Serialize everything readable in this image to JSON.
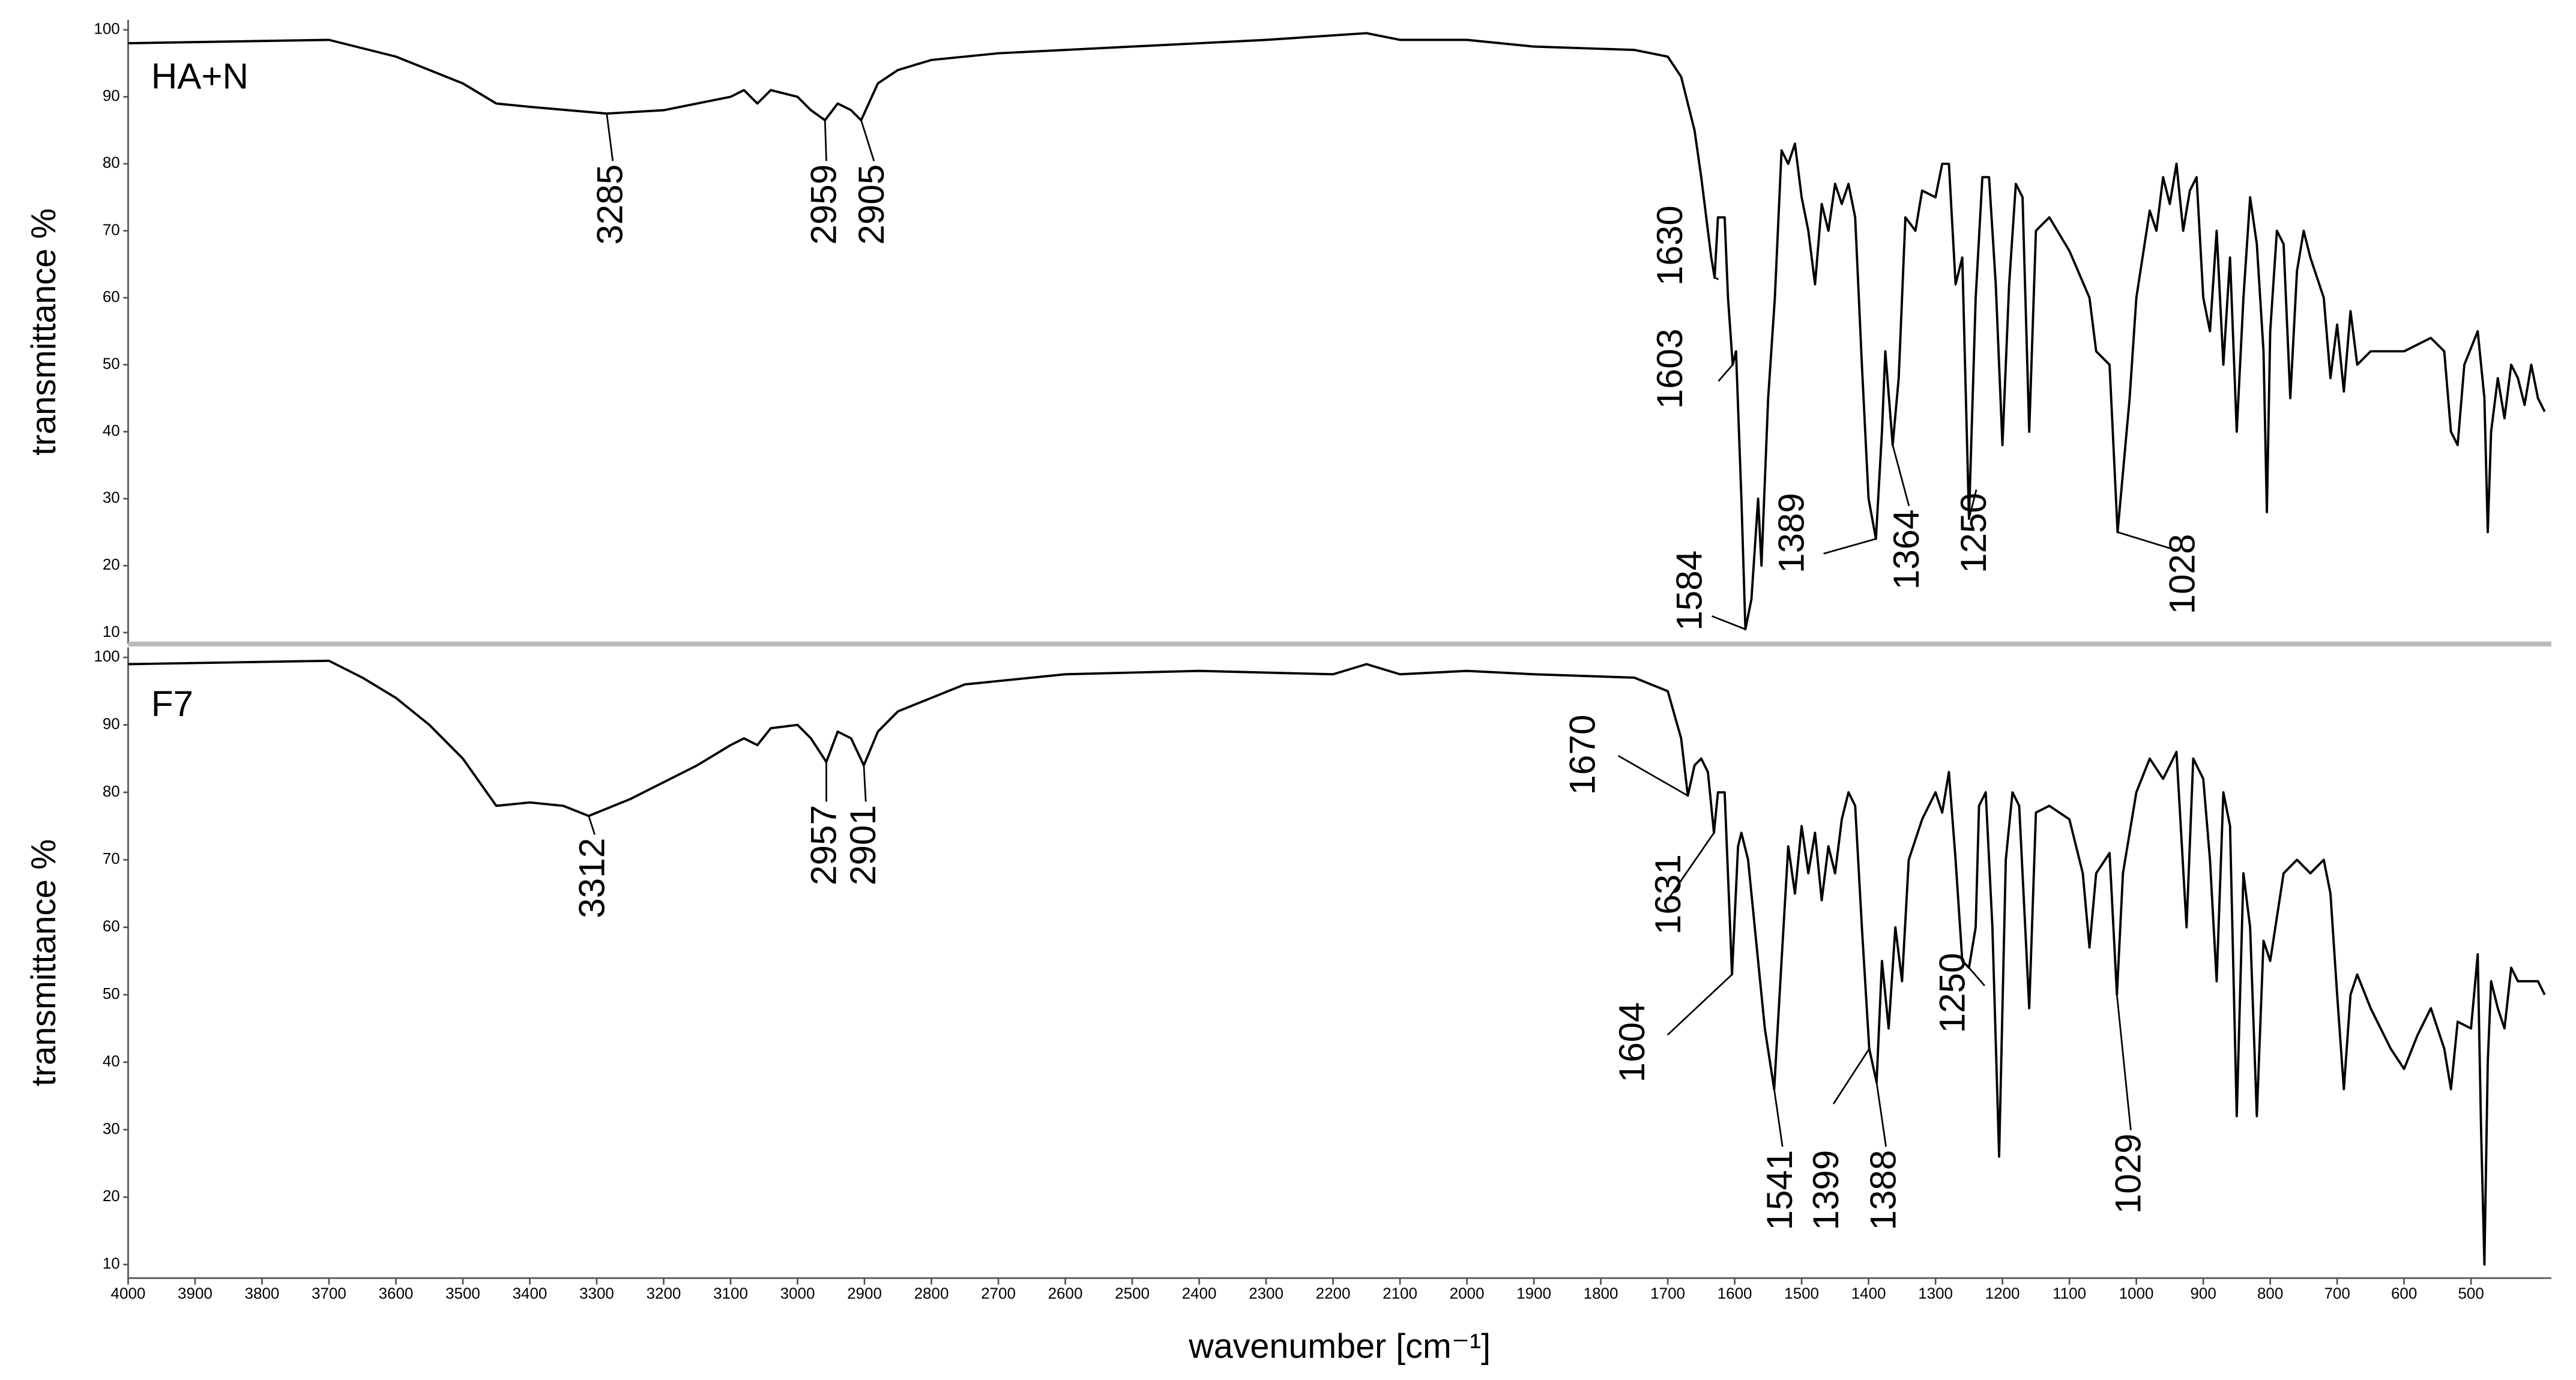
{
  "chart_data": [
    {
      "type": "line",
      "label": "HA+N",
      "ylabel": "transmittance %",
      "color": "#000000",
      "xlim": [
        4000,
        380
      ],
      "ylim": [
        8.3,
        101.5
      ],
      "yticks": [
        10,
        20,
        30,
        40,
        50,
        60,
        70,
        80,
        90,
        100
      ],
      "x": [
        4000,
        3700,
        3600,
        3500,
        3450,
        3400,
        3285,
        3200,
        3100,
        3080,
        3060,
        3040,
        3000,
        2980,
        2959,
        2940,
        2920,
        2905,
        2880,
        2850,
        2800,
        2700,
        2500,
        2300,
        2150,
        2100,
        2000,
        1900,
        1750,
        1700,
        1680,
        1660,
        1650,
        1640,
        1635,
        1630,
        1625,
        1615,
        1610,
        1603,
        1598,
        1590,
        1584,
        1575,
        1565,
        1560,
        1550,
        1540,
        1530,
        1520,
        1510,
        1500,
        1490,
        1480,
        1470,
        1460,
        1450,
        1440,
        1430,
        1420,
        1410,
        1400,
        1389,
        1380,
        1375,
        1364,
        1355,
        1345,
        1330,
        1320,
        1300,
        1290,
        1280,
        1270,
        1260,
        1250,
        1240,
        1230,
        1220,
        1210,
        1200,
        1190,
        1180,
        1170,
        1160,
        1150,
        1130,
        1100,
        1070,
        1060,
        1040,
        1028,
        1010,
        1000,
        980,
        970,
        960,
        950,
        940,
        930,
        920,
        910,
        900,
        890,
        880,
        870,
        860,
        850,
        840,
        830,
        820,
        810,
        805,
        800,
        790,
        780,
        770,
        760,
        750,
        740,
        720,
        710,
        700,
        690,
        680,
        670,
        650,
        600,
        560,
        540,
        530,
        520,
        510,
        490,
        480,
        475,
        470,
        460,
        450,
        440,
        430,
        420,
        410,
        400,
        390
      ],
      "values": [
        98,
        98.5,
        96,
        92,
        89,
        88.5,
        87.5,
        88,
        90,
        91,
        89,
        91,
        90,
        88,
        86.5,
        89,
        88,
        86.5,
        92,
        94,
        95.5,
        96.5,
        97.5,
        98.5,
        99.5,
        98.5,
        98.5,
        97.5,
        97,
        96,
        93,
        85,
        78,
        70,
        66,
        63,
        72,
        72,
        60,
        50,
        52,
        30,
        10.5,
        15,
        30,
        20,
        45,
        60,
        82,
        80,
        83,
        75,
        70,
        62,
        74,
        70,
        77,
        74,
        77,
        72,
        50,
        30,
        24,
        40,
        52,
        38,
        48,
        72,
        70,
        76,
        75,
        80,
        80,
        62,
        66,
        27,
        60,
        78,
        78,
        62,
        38,
        62,
        77,
        75,
        40,
        70,
        72,
        67,
        60,
        52,
        50,
        25,
        45,
        60,
        73,
        70,
        78,
        74,
        80,
        70,
        76,
        78,
        60,
        55,
        70,
        50,
        66,
        40,
        60,
        75,
        68,
        52,
        28,
        55,
        70,
        68,
        45,
        64,
        70,
        66,
        60,
        48,
        56,
        46,
        58,
        50,
        52,
        52,
        54,
        52,
        40,
        38,
        50,
        55,
        45,
        25,
        40,
        48,
        42,
        50,
        48,
        44,
        50,
        45,
        43
      ],
      "peaks": [
        3285,
        2959,
        2905,
        1630,
        1603,
        1584,
        1389,
        1364,
        1250,
        1028
      ]
    },
    {
      "type": "line",
      "label": "F7",
      "ylabel": "transmittance %",
      "color": "#000000",
      "xlabel": "wavenumber [cm⁻¹]",
      "xlim": [
        4000,
        380
      ],
      "ylim": [
        8,
        101.5
      ],
      "xticks": [
        4000,
        3900,
        3800,
        3700,
        3600,
        3500,
        3400,
        3300,
        3200,
        3100,
        3000,
        2900,
        2800,
        2700,
        2600,
        2500,
        2400,
        2300,
        2200,
        2100,
        2000,
        1900,
        1800,
        1700,
        1600,
        1500,
        1400,
        1300,
        1200,
        1100,
        1000,
        900,
        800,
        700,
        600,
        500
      ],
      "yticks": [
        10,
        20,
        30,
        40,
        50,
        60,
        70,
        80,
        90,
        100
      ],
      "x": [
        4000,
        3700,
        3650,
        3600,
        3550,
        3500,
        3450,
        3400,
        3350,
        3312,
        3250,
        3150,
        3100,
        3080,
        3060,
        3040,
        3000,
        2980,
        2957,
        2940,
        2920,
        2901,
        2880,
        2850,
        2800,
        2750,
        2600,
        2400,
        2200,
        2150,
        2100,
        2000,
        1900,
        1750,
        1700,
        1680,
        1670,
        1660,
        1650,
        1640,
        1631,
        1625,
        1615,
        1604,
        1595,
        1590,
        1580,
        1570,
        1555,
        1541,
        1530,
        1520,
        1510,
        1500,
        1490,
        1480,
        1470,
        1460,
        1450,
        1440,
        1430,
        1420,
        1410,
        1399,
        1388,
        1380,
        1370,
        1360,
        1350,
        1340,
        1320,
        1300,
        1290,
        1280,
        1270,
        1260,
        1250,
        1240,
        1235,
        1225,
        1215,
        1205,
        1195,
        1185,
        1175,
        1160,
        1150,
        1130,
        1100,
        1080,
        1070,
        1060,
        1040,
        1029,
        1020,
        1000,
        980,
        960,
        940,
        925,
        915,
        900,
        890,
        880,
        870,
        860,
        850,
        840,
        830,
        820,
        810,
        800,
        780,
        760,
        740,
        720,
        710,
        700,
        690,
        680,
        670,
        650,
        620,
        600,
        580,
        560,
        540,
        530,
        520,
        500,
        490,
        485,
        480,
        475,
        470,
        460,
        450,
        440,
        430,
        400,
        390
      ],
      "values": [
        99,
        99.5,
        97,
        94,
        90,
        85,
        78,
        78.5,
        78,
        76.5,
        79,
        84,
        87,
        88,
        87,
        89.5,
        90,
        88,
        84.5,
        89,
        88,
        84,
        89,
        92,
        94,
        96,
        97.5,
        98,
        97.5,
        99,
        97.5,
        98,
        97.5,
        97,
        95,
        88,
        79.5,
        84,
        85,
        83,
        74,
        80,
        80,
        53,
        72,
        74,
        70,
        60,
        45,
        36,
        55,
        72,
        65,
        75,
        68,
        74,
        64,
        72,
        68,
        76,
        80,
        78,
        60,
        42,
        37,
        55,
        45,
        60,
        52,
        70,
        76,
        80,
        77,
        83,
        70,
        55,
        54,
        60,
        78,
        80,
        60,
        26,
        70,
        80,
        78,
        48,
        77,
        78,
        76,
        68,
        57,
        68,
        71,
        50,
        68,
        80,
        85,
        82,
        86,
        60,
        85,
        82,
        70,
        52,
        80,
        75,
        32,
        68,
        60,
        32,
        58,
        55,
        68,
        70,
        68,
        70,
        65,
        50,
        36,
        50,
        53,
        48,
        42,
        39,
        44,
        48,
        42,
        36,
        46,
        45,
        56,
        30,
        10,
        40,
        52,
        48,
        45,
        54,
        52,
        52,
        50
      ],
      "peaks": [
        3312,
        2957,
        2901,
        1670,
        1631,
        1604,
        1541,
        1399,
        1388,
        1250,
        1029
      ]
    }
  ]
}
